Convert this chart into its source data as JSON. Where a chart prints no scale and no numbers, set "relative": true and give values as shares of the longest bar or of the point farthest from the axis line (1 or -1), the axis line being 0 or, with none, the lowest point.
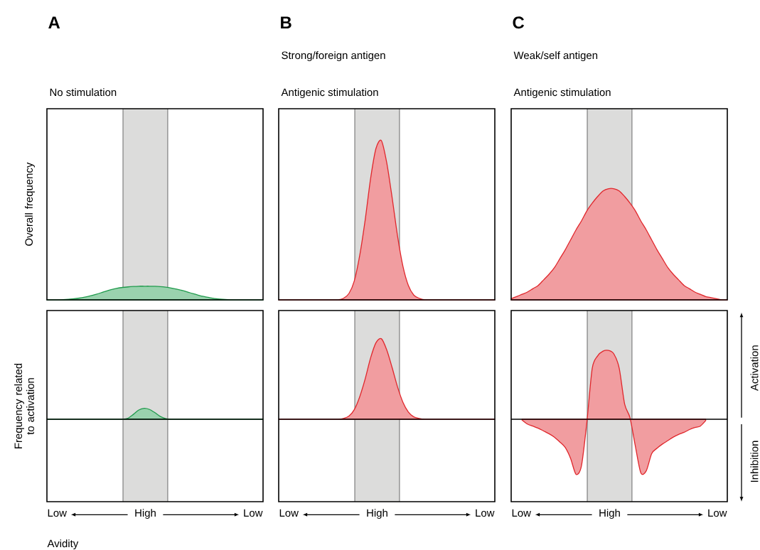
{
  "chart_data": [
    {
      "type": "area",
      "relative": true,
      "title": "A",
      "annotations": [
        "No stimulation"
      ],
      "ylabel": "Overall frequency",
      "categories": [
        null,
        null,
        null,
        null,
        null,
        null,
        null,
        null,
        null,
        null,
        null,
        null,
        null,
        null,
        null,
        null,
        null,
        null,
        null,
        null,
        null,
        null,
        null,
        null,
        null,
        null,
        null,
        null,
        null,
        null,
        null,
        null,
        null,
        null,
        null,
        null,
        null,
        null,
        null,
        null,
        null
      ],
      "color": "#1e9a4b",
      "values": [
        0,
        0,
        0,
        0.02,
        0.05,
        0.08,
        0.13,
        0.2,
        0.29,
        0.4,
        0.52,
        0.65,
        0.76,
        0.85,
        0.91,
        0.95,
        0.98,
        1,
        1,
        1,
        0.99,
        0.97,
        0.93,
        0.87,
        0.79,
        0.69,
        0.58,
        0.46,
        0.35,
        0.25,
        0.17,
        0.1,
        0.06,
        0.03,
        0.01,
        0,
        0,
        0,
        0,
        0,
        0
      ]
    },
    {
      "type": "area",
      "relative": true,
      "title": "B",
      "subtitle": "Strong/foreign antigen",
      "annotations": [
        "Antigenic stimulation"
      ],
      "categories": [
        null,
        null,
        null,
        null,
        null,
        null,
        null,
        null,
        null,
        null,
        null,
        null,
        null,
        null,
        null,
        null,
        null,
        null,
        null,
        null,
        null,
        null,
        null,
        null,
        null,
        null,
        null,
        null,
        null,
        null,
        null,
        null,
        null,
        null,
        null,
        null,
        null,
        null,
        null,
        null,
        null
      ],
      "color": "#e0262b",
      "values": [
        0,
        0,
        0,
        0,
        0,
        0,
        0,
        0,
        0,
        0,
        0,
        0,
        0.01,
        0.04,
        0.12,
        0.28,
        0.5,
        0.76,
        0.95,
        1,
        0.86,
        0.64,
        0.4,
        0.21,
        0.09,
        0.03,
        0.01,
        0,
        0,
        0,
        0,
        0,
        0,
        0,
        0,
        0,
        0,
        0,
        0,
        0,
        0
      ]
    },
    {
      "type": "area",
      "relative": true,
      "title": "C",
      "subtitle": "Weak/self antigen",
      "annotations": [
        "Antigenic stimulation"
      ],
      "categories": [
        null,
        null,
        null,
        null,
        null,
        null,
        null,
        null,
        null,
        null,
        null,
        null,
        null,
        null,
        null,
        null,
        null,
        null,
        null,
        null,
        null,
        null,
        null,
        null,
        null,
        null,
        null,
        null,
        null,
        null,
        null,
        null,
        null,
        null,
        null,
        null,
        null,
        null,
        null,
        null,
        null
      ],
      "color": "#e0262b",
      "values": [
        0.01,
        0.03,
        0.05,
        0.07,
        0.1,
        0.13,
        0.18,
        0.23,
        0.29,
        0.37,
        0.45,
        0.54,
        0.63,
        0.71,
        0.8,
        0.87,
        0.93,
        0.98,
        1,
        1,
        0.98,
        0.93,
        0.87,
        0.8,
        0.71,
        0.63,
        0.54,
        0.45,
        0.37,
        0.29,
        0.23,
        0.18,
        0.13,
        0.1,
        0.07,
        0.05,
        0.03,
        0.02,
        0.01,
        0,
        0
      ]
    },
    {
      "type": "area",
      "relative": true,
      "xlabel": "High",
      "ylabel": "Frequency related to activation",
      "annotations": [
        "Low",
        "Low",
        "Avidity"
      ],
      "categories": [
        null,
        null,
        null,
        null,
        null,
        null,
        null,
        null,
        null,
        null,
        null,
        null,
        null,
        null,
        null,
        null,
        null,
        null,
        null,
        null,
        null,
        null,
        null,
        null,
        null,
        null,
        null,
        null,
        null,
        null,
        null,
        null,
        null,
        null,
        null,
        null,
        null,
        null,
        null,
        null,
        null
      ],
      "color": "#1e9a4b",
      "values": [
        0,
        0,
        0,
        0,
        0,
        0,
        0,
        0,
        0,
        0,
        0,
        0,
        0,
        0,
        0,
        0.1,
        0.45,
        0.85,
        1,
        0.9,
        0.6,
        0.25,
        0.05,
        0,
        0,
        0,
        0,
        0,
        0,
        0,
        0,
        0,
        0,
        0,
        0,
        0,
        0,
        0,
        0,
        0,
        0
      ]
    },
    {
      "type": "area",
      "relative": true,
      "xlabel": "High",
      "annotations": [
        "Low",
        "Low"
      ],
      "categories": [
        null,
        null,
        null,
        null,
        null,
        null,
        null,
        null,
        null,
        null,
        null,
        null,
        null,
        null,
        null,
        null,
        null,
        null,
        null,
        null,
        null,
        null,
        null,
        null,
        null,
        null,
        null,
        null,
        null,
        null,
        null,
        null,
        null,
        null,
        null,
        null,
        null,
        null,
        null,
        null,
        null
      ],
      "color": "#e0262b",
      "values": [
        0,
        0,
        0,
        0,
        0,
        0,
        0,
        0,
        0,
        0,
        0,
        0,
        0.01,
        0.04,
        0.12,
        0.28,
        0.5,
        0.76,
        0.95,
        1,
        0.86,
        0.64,
        0.4,
        0.21,
        0.09,
        0.03,
        0.01,
        0,
        0,
        0,
        0,
        0,
        0,
        0,
        0,
        0,
        0,
        0,
        0,
        0,
        0
      ]
    },
    {
      "type": "area",
      "relative": true,
      "xlabel": "High",
      "annotations": [
        "Low",
        "Low",
        "Activation",
        "Inhibition"
      ],
      "categories": [
        null,
        null,
        null,
        null,
        null,
        null,
        null,
        null,
        null,
        null,
        null,
        null,
        null,
        null,
        null,
        null,
        null,
        null,
        null,
        null,
        null,
        null,
        null,
        null,
        null,
        null,
        null,
        null,
        null,
        null,
        null,
        null,
        null,
        null,
        null,
        null,
        null,
        null,
        null,
        null,
        null
      ],
      "color": "#e0262b",
      "values": [
        null,
        null,
        -0.01,
        -0.07,
        -0.1,
        -0.13,
        -0.17,
        -0.21,
        -0.26,
        -0.33,
        -0.41,
        -0.57,
        -0.8,
        -0.68,
        -0.05,
        0.74,
        0.92,
        0.99,
        1,
        0.95,
        0.74,
        0.22,
        0.02,
        -0.4,
        -0.78,
        -0.75,
        -0.5,
        -0.42,
        -0.36,
        -0.31,
        -0.26,
        -0.22,
        -0.19,
        -0.15,
        -0.12,
        -0.1,
        -0.02,
        null,
        null,
        null,
        null
      ]
    }
  ]
}
